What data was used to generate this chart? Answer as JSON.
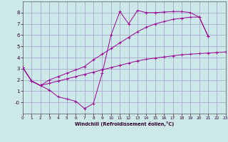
{
  "xlabel": "Windchill (Refroidissement éolien,°C)",
  "background_color": "#cce8e8",
  "grid_color": "#aaaacc",
  "line_color": "#990099",
  "xlim": [
    0,
    23
  ],
  "ylim": [
    -1.0,
    9.0
  ],
  "xticks": [
    0,
    1,
    2,
    3,
    4,
    5,
    6,
    7,
    8,
    9,
    10,
    11,
    12,
    13,
    14,
    15,
    16,
    17,
    18,
    19,
    20,
    21,
    22,
    23
  ],
  "yticks": [
    0,
    1,
    2,
    3,
    4,
    5,
    6,
    7,
    8
  ],
  "ytick_labels": [
    "-0",
    "1",
    "2",
    "3",
    "4",
    "5",
    "6",
    "7",
    "8"
  ],
  "line1_x": [
    0,
    1,
    2,
    3,
    4,
    5,
    6,
    7,
    8,
    9,
    10,
    11,
    12,
    13,
    14,
    15,
    16,
    17,
    18,
    19,
    20,
    21
  ],
  "line1_y": [
    3.1,
    1.9,
    1.5,
    1.1,
    0.5,
    0.3,
    0.1,
    -0.55,
    -0.1,
    2.6,
    6.0,
    8.1,
    7.0,
    8.2,
    8.0,
    8.0,
    8.05,
    8.1,
    8.1,
    8.0,
    7.6,
    5.9
  ],
  "line2_x": [
    0,
    1,
    2,
    3,
    4,
    5,
    6,
    7,
    8,
    9,
    10,
    11,
    12,
    13,
    14,
    15,
    16,
    17,
    18,
    19,
    20,
    21
  ],
  "line2_y": [
    3.1,
    1.9,
    1.5,
    2.0,
    2.3,
    2.6,
    2.9,
    3.2,
    3.8,
    4.3,
    4.8,
    5.3,
    5.8,
    6.3,
    6.7,
    7.0,
    7.2,
    7.4,
    7.5,
    7.6,
    7.6,
    5.9
  ],
  "line3_x": [
    0,
    1,
    2,
    3,
    4,
    5,
    6,
    7,
    8,
    9,
    10,
    11,
    12,
    13,
    14,
    15,
    16,
    17,
    18,
    19,
    20,
    21,
    22,
    23
  ],
  "line3_y": [
    3.1,
    1.9,
    1.5,
    1.7,
    1.9,
    2.1,
    2.3,
    2.5,
    2.7,
    2.9,
    3.1,
    3.3,
    3.5,
    3.7,
    3.85,
    3.95,
    4.05,
    4.15,
    4.25,
    4.3,
    4.35,
    4.4,
    4.45,
    4.5
  ]
}
